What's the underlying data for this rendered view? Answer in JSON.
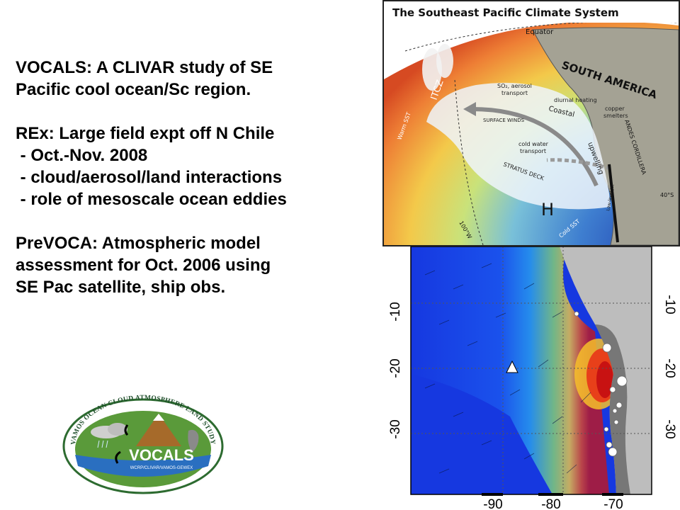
{
  "left_text": {
    "vocals_line1": "VOCALS: A CLIVAR study of SE",
    "vocals_line2": "Pacific cool ocean/Sc region.",
    "rex_line1": "REx: Large field expt off N Chile",
    "rex_bullet1": " - Oct.-Nov. 2008",
    "rex_bullet2": " - cloud/aerosol/land interactions",
    "rex_bullet3": " - role of mesoscale ocean eddies",
    "prevoca_line1": "PreVOCA: Atmospheric model",
    "prevoca_line2": "assessment for Oct. 2006 using",
    "prevoca_line3": "SE Pac satellite, ship obs."
  },
  "climate_diagram": {
    "title": "The Southeast Pacific Climate System",
    "labels": {
      "equator": "Equator",
      "south_america": "SOUTH AMERICA",
      "itcz": "ITCZ",
      "warm_sst": "Warm SST",
      "so2": "SO₂, aerosol",
      "transport": "transport",
      "diurnal_heating": "diurnal heating",
      "coastal": "Coastal",
      "copper": "copper",
      "smelters": "smelters",
      "surface_winds": "SURFACE WINDS",
      "cold_water": "cold water",
      "cold_transport": "transport",
      "upwelling": "upwelling",
      "andes": "ANDES CORDILLERA",
      "stratus_deck": "STRATUS DECK",
      "high": "H",
      "lat40": "40°S",
      "lon100": "100°W",
      "low_level_jet": "Low-level jet",
      "cold_sst": "Cold SST"
    },
    "colors": {
      "warm": "#e05a2a",
      "cool": "#3a5ab8",
      "land": "#9a9a8a",
      "stratus": "#eef4fb"
    }
  },
  "map": {
    "y_ticks": [
      "-10",
      "-20",
      "-30"
    ],
    "x_ticks": [
      "-90",
      "-80",
      "-70"
    ],
    "colors": {
      "ocean_low": "#1438e0",
      "ocean_mid": "#22a0f0",
      "peak": "#e01818",
      "land": "#b8b8b8"
    }
  },
  "logo": {
    "arc_text": "VAMOS OCEAN CLOUD ATMOSPHERE LAND STUDY",
    "name": "VOCALS",
    "subtext": "WCRP/CLIVAR/VAMOS-GEWEX"
  }
}
